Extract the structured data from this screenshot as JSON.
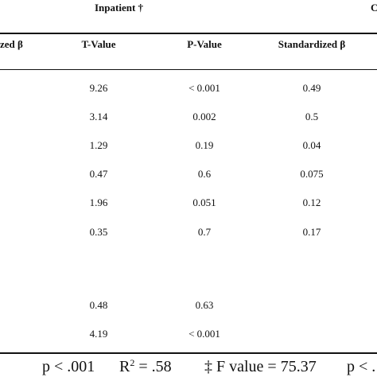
{
  "table": {
    "group_left": "Inpatient †",
    "group_right_partial": "C",
    "columns": [
      "zed β",
      "T-Value",
      "P-Value",
      "Standardized β"
    ],
    "rows": [
      [
        "9.26",
        "< 0.001",
        "0.49"
      ],
      [
        "3.14",
        "0.002",
        "0.5"
      ],
      [
        "1.29",
        "0.19",
        "0.04"
      ],
      [
        "0.47",
        "0.6",
        "0.075"
      ],
      [
        "1.96",
        "0.051",
        "0.12"
      ],
      [
        "0.35",
        "0.7",
        "0.17"
      ],
      [
        "",
        "",
        ""
      ],
      [
        "0.48",
        "0.63",
        ""
      ],
      [
        "4.19",
        "< 0.001",
        ""
      ]
    ]
  },
  "footer": {
    "p_left": "p < .001",
    "r2_label": "R",
    "r2_sup": "2",
    "r2_value": " = .58",
    "f_value": "‡ F value = 75.37",
    "p_right_partial": "p < ."
  }
}
